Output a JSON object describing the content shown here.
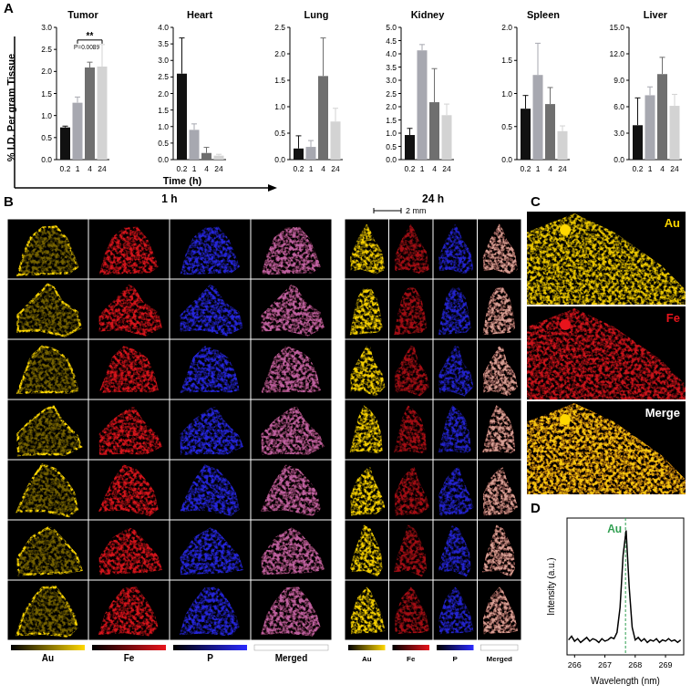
{
  "chart_data": [
    {
      "type": "bar",
      "title": "Tumor",
      "ylabel": "% I.D. Per gram Tissue",
      "categories": [
        "0.2",
        "1",
        "4",
        "24"
      ],
      "values": [
        0.73,
        1.29,
        2.09,
        2.11
      ],
      "errors": [
        0.03,
        0.13,
        0.12,
        0.5
      ],
      "colors": [
        "#111111",
        "#a7a8b0",
        "#6f6f6f",
        "#d3d3d3"
      ],
      "ylim": [
        0,
        3
      ],
      "yticks": [
        {
          "value": 0,
          "label": "0.0"
        },
        {
          "value": 0.5,
          "label": "0.5"
        },
        {
          "value": 1,
          "label": "1.0"
        },
        {
          "value": 1.5,
          "label": "1.5"
        },
        {
          "value": 2,
          "label": "2.0"
        },
        {
          "value": 2.5,
          "label": "2.5"
        },
        {
          "value": 3,
          "label": "3.0"
        }
      ],
      "significance": {
        "from": 1,
        "to": 3,
        "stars": "**",
        "p": "P=0.0089"
      }
    },
    {
      "type": "bar",
      "title": "Heart",
      "categories": [
        "0.2",
        "1",
        "4",
        "24"
      ],
      "values": [
        2.6,
        0.9,
        0.2,
        0.12
      ],
      "errors": [
        1.08,
        0.18,
        0.17,
        0.04
      ],
      "colors": [
        "#111111",
        "#a7a8b0",
        "#6f6f6f",
        "#d3d3d3"
      ],
      "ylim": [
        0,
        4
      ],
      "yticks": [
        {
          "value": 0,
          "label": "0.0"
        },
        {
          "value": 0.5,
          "label": "0.5"
        },
        {
          "value": 1,
          "label": "1.0"
        },
        {
          "value": 1.5,
          "label": "1.5"
        },
        {
          "value": 2,
          "label": "2.0"
        },
        {
          "value": 2.5,
          "label": "2.5"
        },
        {
          "value": 3,
          "label": "3.0"
        },
        {
          "value": 3.5,
          "label": "3.5"
        },
        {
          "value": 4,
          "label": "4.0"
        }
      ]
    },
    {
      "type": "bar",
      "title": "Lung",
      "categories": [
        "0.2",
        "1",
        "4",
        "24"
      ],
      "values": [
        0.21,
        0.24,
        1.58,
        0.72
      ],
      "errors": [
        0.24,
        0.12,
        0.72,
        0.25
      ],
      "colors": [
        "#111111",
        "#a7a8b0",
        "#6f6f6f",
        "#d3d3d3"
      ],
      "ylim": [
        0,
        2.5
      ],
      "yticks": [
        {
          "value": 0,
          "label": "0.0"
        },
        {
          "value": 0.5,
          "label": "0.5"
        },
        {
          "value": 1,
          "label": "1.0"
        },
        {
          "value": 1.5,
          "label": "1.5"
        },
        {
          "value": 2,
          "label": "2.0"
        },
        {
          "value": 2.5,
          "label": "2.5"
        }
      ]
    },
    {
      "type": "bar",
      "title": "Kidney",
      "categories": [
        "0.2",
        "1",
        "4",
        "24"
      ],
      "values": [
        0.93,
        4.13,
        2.17,
        1.68
      ],
      "errors": [
        0.25,
        0.22,
        1.27,
        0.42
      ],
      "colors": [
        "#111111",
        "#a7a8b0",
        "#6f6f6f",
        "#d3d3d3"
      ],
      "ylim": [
        0,
        5
      ],
      "yticks": [
        {
          "value": 0,
          "label": "0.0"
        },
        {
          "value": 0.5,
          "label": "0.5"
        },
        {
          "value": 1,
          "label": "1.0"
        },
        {
          "value": 1.5,
          "label": "1.5"
        },
        {
          "value": 2,
          "label": "2.0"
        },
        {
          "value": 2.5,
          "label": "2.5"
        },
        {
          "value": 3,
          "label": "3.0"
        },
        {
          "value": 3.5,
          "label": "3.5"
        },
        {
          "value": 4,
          "label": "4.0"
        },
        {
          "value": 4.5,
          "label": "4.5"
        },
        {
          "value": 5,
          "label": "5.0"
        }
      ]
    },
    {
      "type": "bar",
      "title": "Spleen",
      "categories": [
        "0.2",
        "1",
        "4",
        "24"
      ],
      "values": [
        0.77,
        1.28,
        0.84,
        0.43
      ],
      "errors": [
        0.2,
        0.48,
        0.25,
        0.08
      ],
      "colors": [
        "#111111",
        "#a7a8b0",
        "#6f6f6f",
        "#d3d3d3"
      ],
      "ylim": [
        0,
        2
      ],
      "yticks": [
        {
          "value": 0,
          "label": "0.0"
        },
        {
          "value": 0.5,
          "label": "0.5"
        },
        {
          "value": 1,
          "label": "1.0"
        },
        {
          "value": 1.5,
          "label": "1.5"
        },
        {
          "value": 2,
          "label": "2.0"
        }
      ]
    },
    {
      "type": "bar",
      "title": "Liver",
      "categories": [
        "0.2",
        "1",
        "4",
        "24"
      ],
      "values": [
        3.9,
        7.3,
        9.7,
        6.1
      ],
      "errors": [
        3.1,
        0.95,
        1.9,
        1.3
      ],
      "colors": [
        "#111111",
        "#a7a8b0",
        "#6f6f6f",
        "#d3d3d3"
      ],
      "ylim": [
        0,
        15
      ],
      "yticks": [
        {
          "value": 0,
          "label": "0.0"
        },
        {
          "value": 3,
          "label": "3.0"
        },
        {
          "value": 6,
          "label": "6.0"
        },
        {
          "value": 9,
          "label": "9.0"
        },
        {
          "value": 12,
          "label": "12.0"
        },
        {
          "value": 15,
          "label": "15.0"
        }
      ]
    },
    {
      "type": "line",
      "xlabel": "Wavelength (nm)",
      "ylabel": "Intensity (a.u.)",
      "color": "#000000",
      "tick_labels": "x",
      "x": [
        265.8,
        265.9,
        266.0,
        266.1,
        266.2,
        266.3,
        266.4,
        266.5,
        266.6,
        266.7,
        266.8,
        266.9,
        267.0,
        267.1,
        267.2,
        267.3,
        267.4,
        267.5,
        267.6,
        267.7,
        267.8,
        267.9,
        268.0,
        268.1,
        268.2,
        268.3,
        268.4,
        268.5,
        268.6,
        268.7,
        268.8,
        268.9,
        269.0,
        269.1,
        269.2,
        269.3,
        269.4,
        269.5
      ],
      "values": [
        0.12,
        0.15,
        0.11,
        0.13,
        0.1,
        0.12,
        0.14,
        0.11,
        0.13,
        0.12,
        0.1,
        0.13,
        0.11,
        0.12,
        0.14,
        0.13,
        0.18,
        0.38,
        0.8,
        1.0,
        0.55,
        0.22,
        0.12,
        0.14,
        0.11,
        0.13,
        0.1,
        0.12,
        0.11,
        0.13,
        0.1,
        0.12,
        0.11,
        0.13,
        0.11,
        0.12,
        0.1,
        0.12
      ],
      "xlim": [
        265.75,
        269.6
      ],
      "ylim": [
        0,
        1.1
      ],
      "xticks": [
        266,
        267,
        268,
        269
      ],
      "annotations": [
        {
          "x": 267.68,
          "text": "Au",
          "color": "#2e9e4f"
        }
      ]
    }
  ],
  "figure": {
    "panel_labels": [
      "A",
      "B",
      "C",
      "D"
    ],
    "xlabel": "Time (h)",
    "panel_b": {
      "headers": [
        "1 h",
        "24 h"
      ],
      "scale_bar": "2 mm",
      "rows": 7,
      "channels": [
        "Au",
        "Fe",
        "P",
        "Merged"
      ],
      "channel_colors": [
        "#ffd800",
        "#e8141c",
        "#2b2bff"
      ]
    },
    "panel_c": {
      "channels": [
        "Au",
        "Fe",
        "Merge"
      ],
      "label_colors": [
        "#ffd800",
        "#e8141c",
        "#ffffff"
      ]
    }
  }
}
